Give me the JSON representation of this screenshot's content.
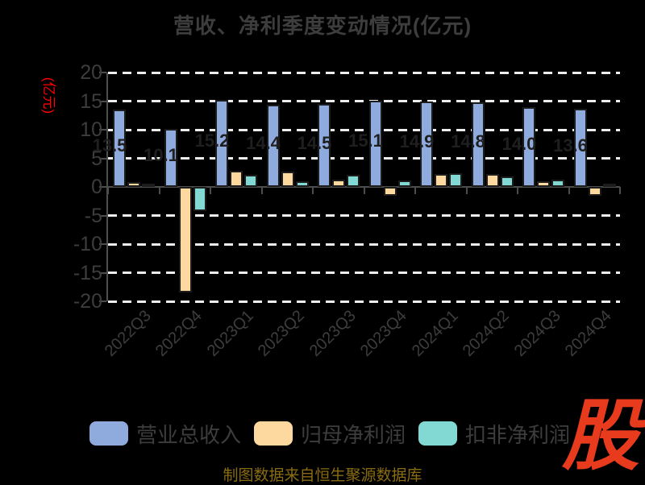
{
  "title": "营收、净利季度变动情况(亿元)",
  "y_axis_unit": "(亿元)",
  "caption": "制图数据来自恒生聚源数据库",
  "logo_text": "股",
  "colors": {
    "background": "#000000",
    "text_gray": "#3d3d3d",
    "grid": "#ededed",
    "axis": "#4d4d4d",
    "accent_red": "#fe0100",
    "caption_gold": "#8a6c10",
    "logo_red": "#e83b1d",
    "bar_label": "#1f1f1f"
  },
  "chart_data": {
    "type": "bar",
    "title": "营收、净利季度变动情况(亿元)",
    "ylabel": "(亿元)",
    "categories": [
      "2022Q3",
      "2022Q4",
      "2023Q1",
      "2023Q2",
      "2023Q3",
      "2023Q4",
      "2024Q1",
      "2024Q2",
      "2024Q3",
      "2024Q4"
    ],
    "series": [
      {
        "name": "营业总收入",
        "color": "#8FAADC",
        "values": [
          13.5,
          10.1,
          15.2,
          14.4,
          14.5,
          15.1,
          14.9,
          14.8,
          14.0,
          13.6
        ],
        "labels": [
          "13.5",
          "10.1",
          "15.2",
          "14.4",
          "14.5",
          "15.1",
          "14.9",
          "14.8",
          "14.0",
          "13.6"
        ]
      },
      {
        "name": "归母净利润",
        "color": "#FDD9A0",
        "values": [
          0.9,
          -18.4,
          2.8,
          2.7,
          1.3,
          -1.5,
          2.3,
          2.3,
          1.0,
          -1.5
        ]
      },
      {
        "name": "扣非净利润",
        "color": "#82D8D2",
        "values": [
          0.6,
          -4.2,
          2.1,
          1.0,
          2.1,
          1.1,
          2.4,
          1.8,
          1.2,
          0.5
        ]
      }
    ],
    "ylim": [
      -20,
      20
    ],
    "yticks": [
      20,
      15,
      10,
      5,
      0,
      -5,
      -10,
      -15,
      -20
    ],
    "ytick_labels": [
      "20",
      "15",
      "10",
      "5",
      "0",
      "-5",
      "-10",
      "-15",
      "-20"
    ],
    "grid": "dashed-horizontal",
    "legend_position": "bottom"
  }
}
